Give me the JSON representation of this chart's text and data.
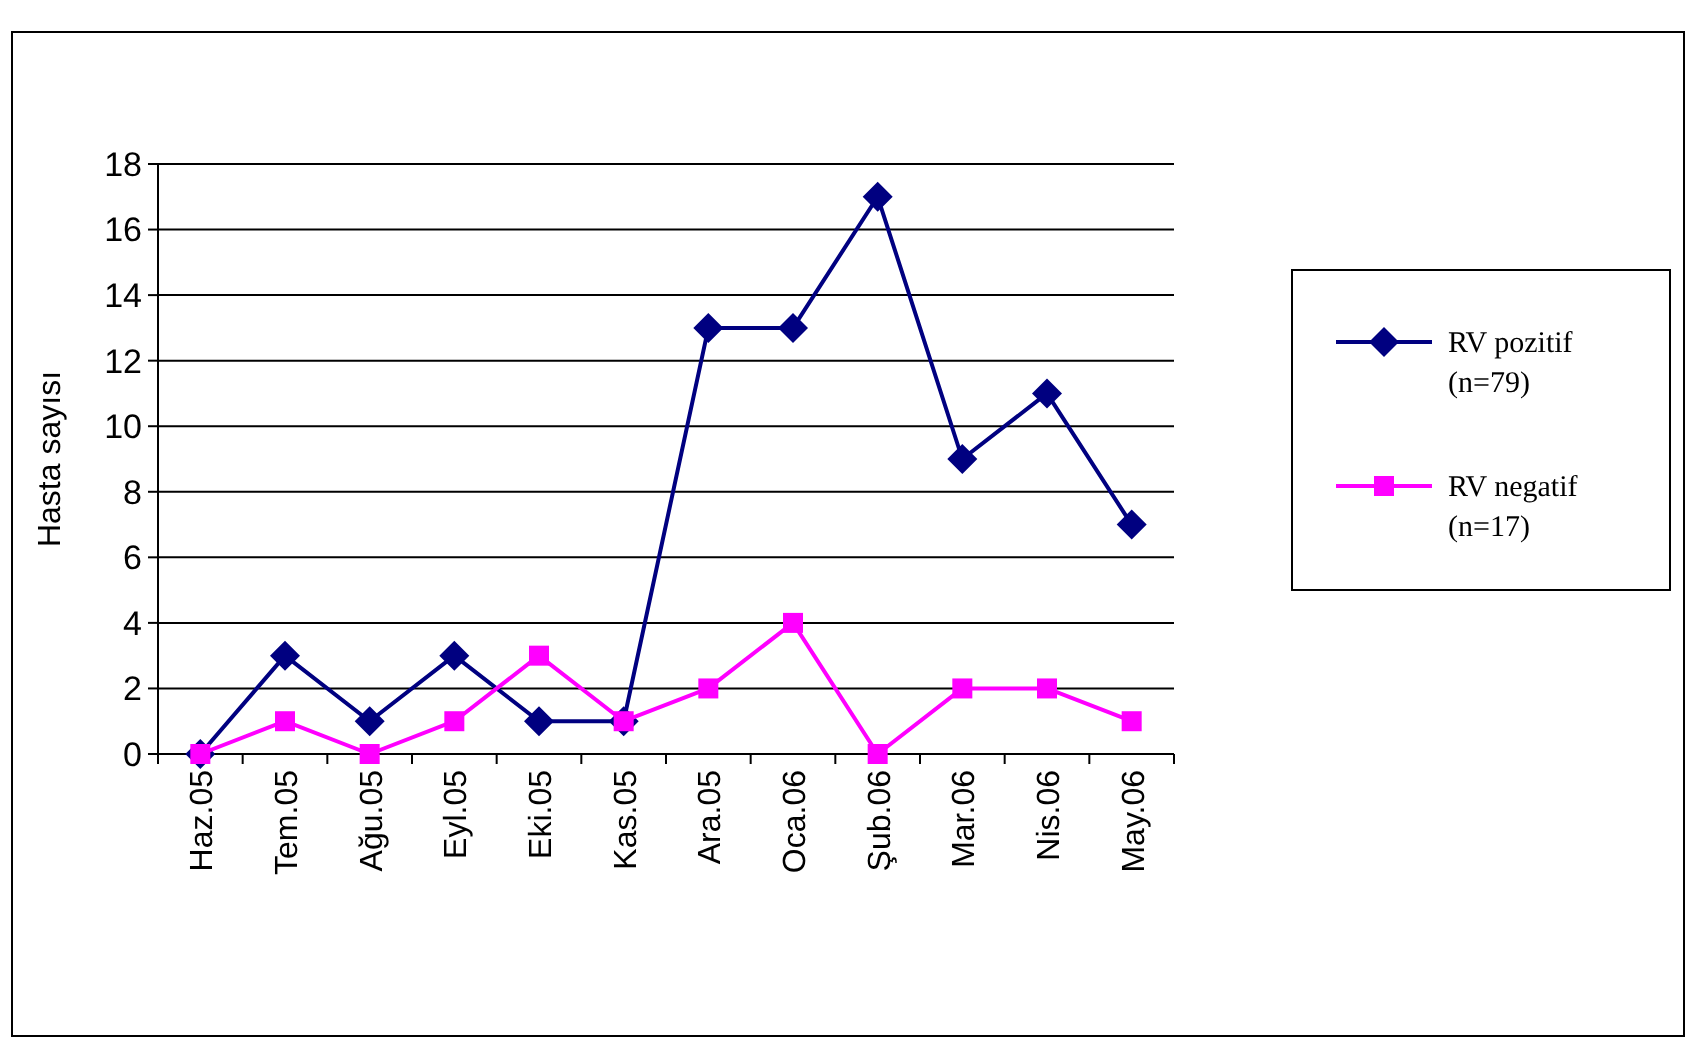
{
  "chart_data": {
    "type": "line",
    "ylabel": "Hasta sayısı",
    "categories": [
      "Haz.05",
      "Tem.05",
      "Ağu.05",
      "Eyl.05",
      "Eki.05",
      "Kas.05",
      "Ara.05",
      "Oca.06",
      "Şub.06",
      "Mar.06",
      "Nis.06",
      "May.06"
    ],
    "series": [
      {
        "name": "RV pozitif\n(n=79)",
        "color": "#000080",
        "marker": "diamond",
        "values": [
          0,
          3,
          1,
          3,
          1,
          1,
          13,
          13,
          17,
          9,
          11,
          7
        ]
      },
      {
        "name": "RV negatif\n(n=17)",
        "color": "#ff00ff",
        "marker": "square",
        "values": [
          0,
          1,
          0,
          1,
          3,
          1,
          2,
          4,
          0,
          2,
          2,
          1
        ]
      }
    ],
    "ylim": [
      0,
      18
    ],
    "yticks": [
      0,
      2,
      4,
      6,
      8,
      10,
      12,
      14,
      16,
      18
    ],
    "grid": "y",
    "legend": "right"
  }
}
